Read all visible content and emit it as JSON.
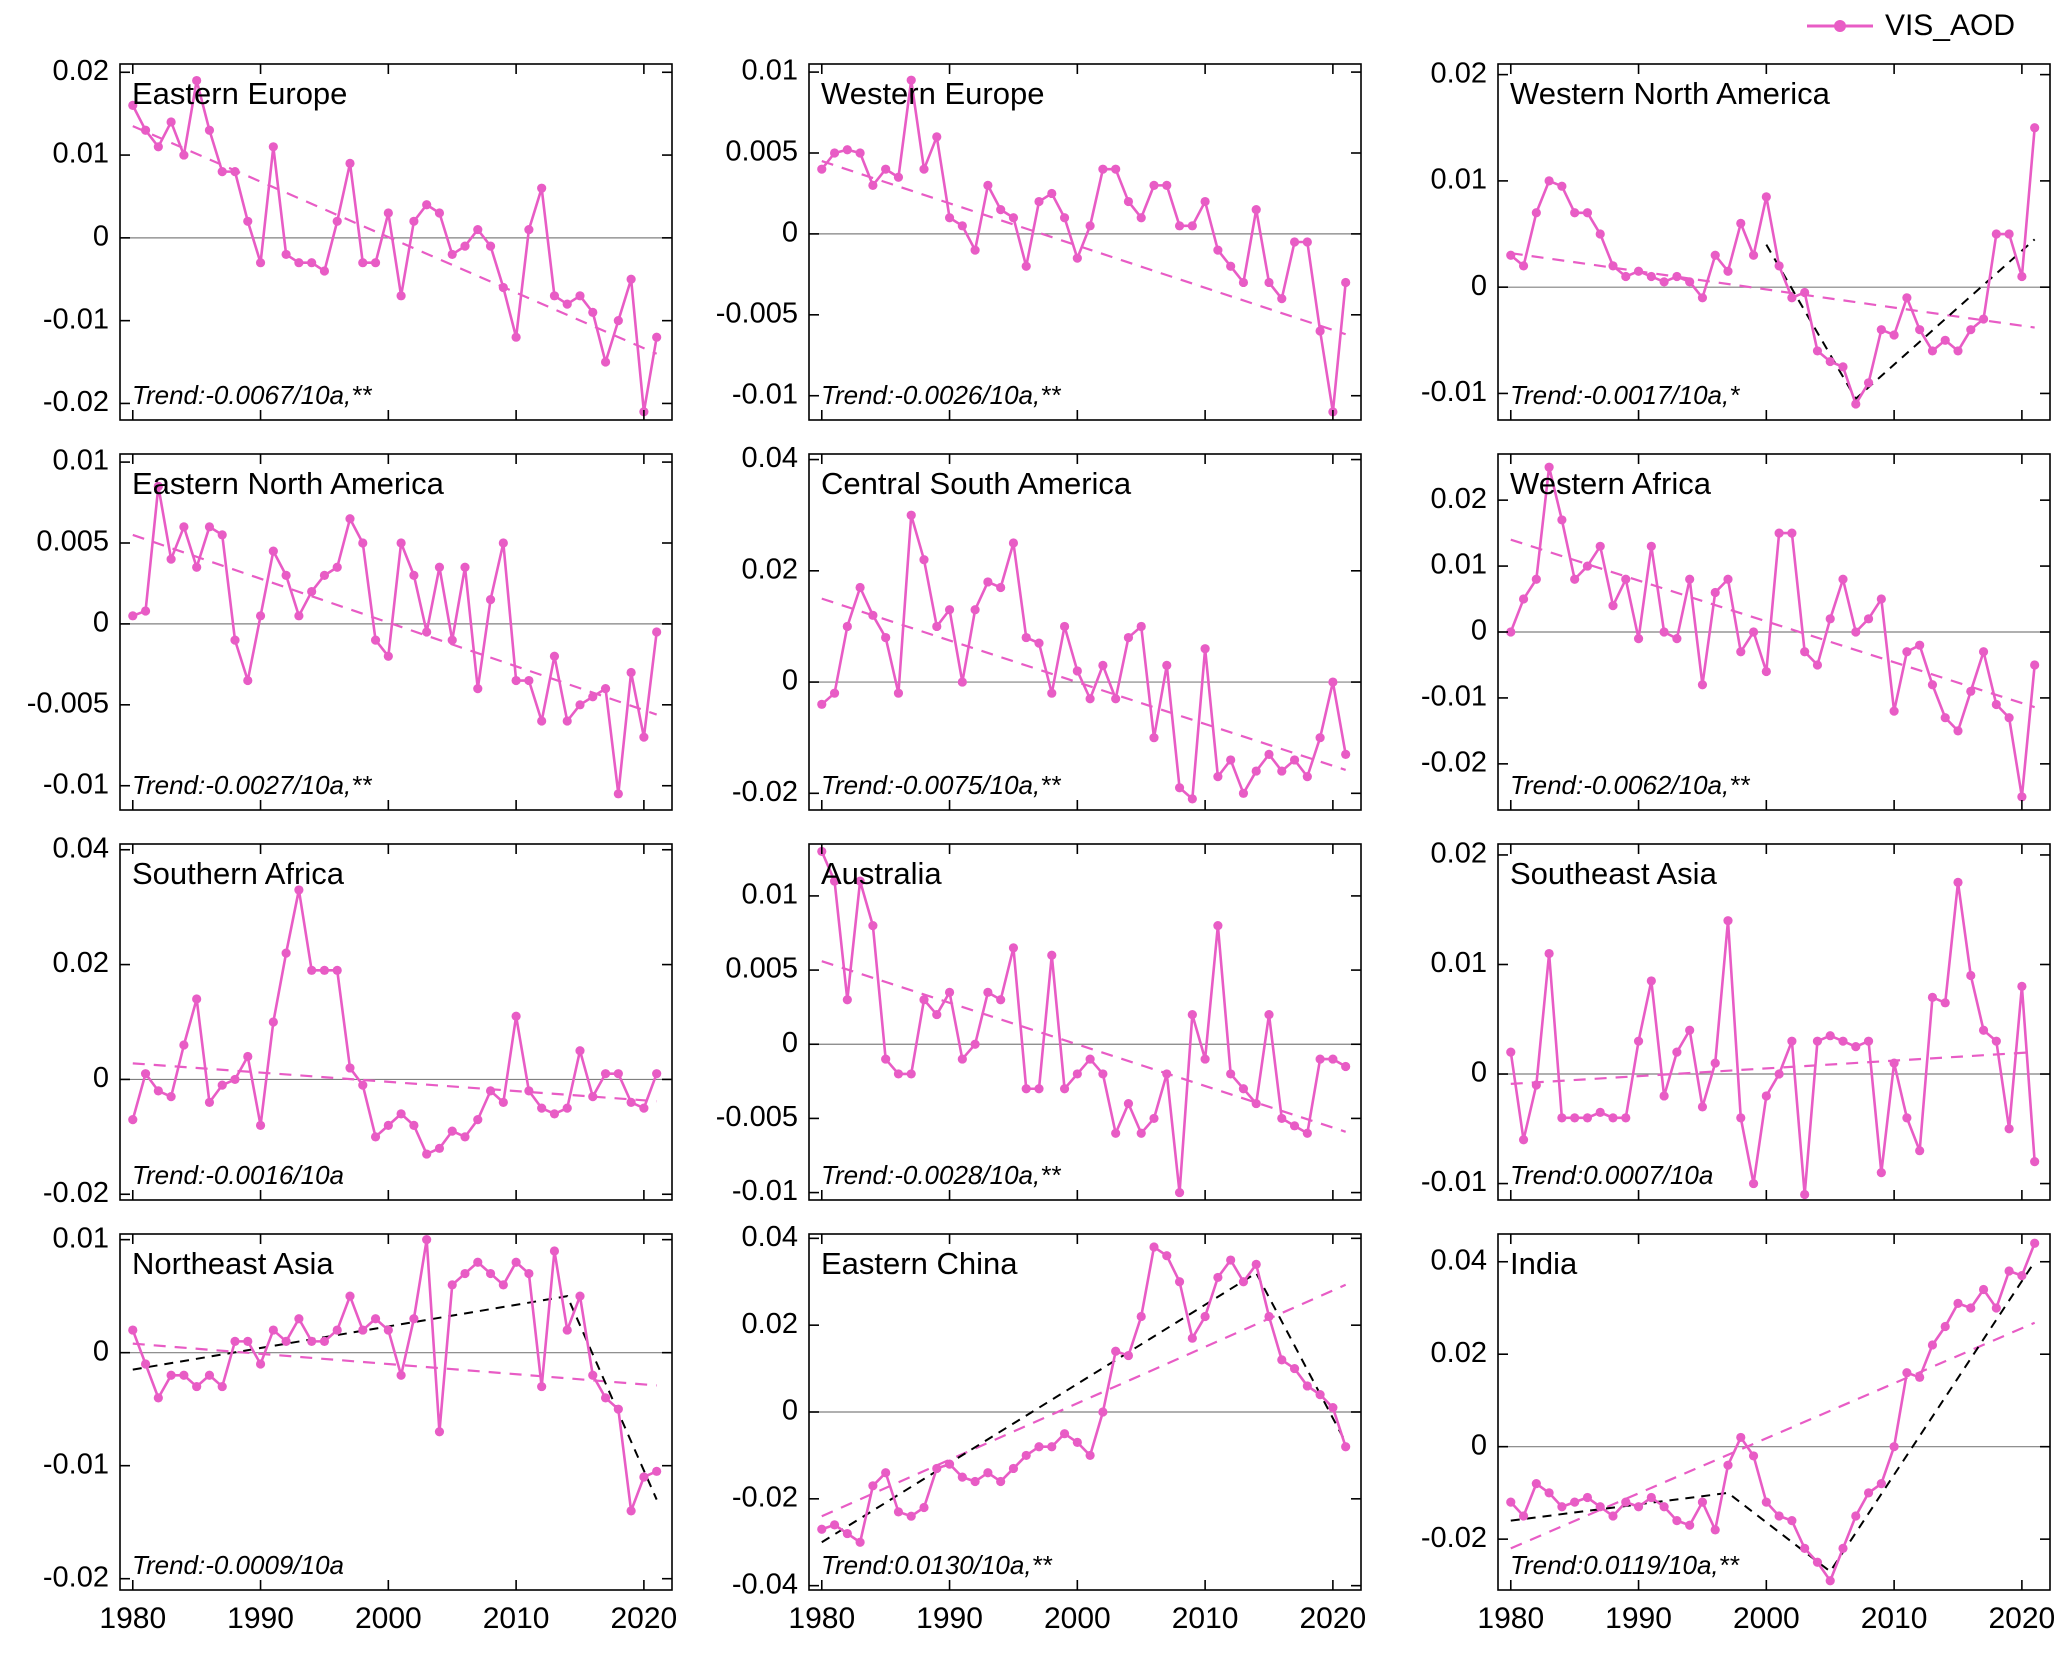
{
  "legend": {
    "label": "VIS_AOD"
  },
  "colors": {
    "series": "#e85cc5",
    "trend": "#e85cc5",
    "piecewise": "#000000",
    "zero_line": "#808080",
    "axis": "#000000"
  },
  "chart_data": {
    "type": "line",
    "grid": "4 rows x 3 cols, shared x axis labels on bottom row only",
    "x_label_ticks": [
      1980,
      1990,
      2000,
      2010,
      2020
    ],
    "xlim": [
      1979,
      2022.2
    ],
    "years": [
      1980,
      1981,
      1982,
      1983,
      1984,
      1985,
      1986,
      1987,
      1988,
      1989,
      1990,
      1991,
      1992,
      1993,
      1994,
      1995,
      1996,
      1997,
      1998,
      1999,
      2000,
      2001,
      2002,
      2003,
      2004,
      2005,
      2006,
      2007,
      2008,
      2009,
      2010,
      2011,
      2012,
      2013,
      2014,
      2015,
      2016,
      2017,
      2018,
      2019,
      2020,
      2021
    ],
    "panels": [
      {
        "title": "Eastern Europe",
        "trend_label": "Trend:-0.0067/10a,**",
        "ylim": [
          -0.022,
          0.021
        ],
        "yticks": [
          0.02,
          0.01,
          0,
          -0.01,
          -0.02
        ],
        "values": [
          0.016,
          0.013,
          0.011,
          0.014,
          0.01,
          0.019,
          0.013,
          0.008,
          0.008,
          0.002,
          -0.003,
          0.011,
          -0.002,
          -0.003,
          -0.003,
          -0.004,
          0.002,
          0.009,
          -0.003,
          -0.003,
          0.003,
          -0.007,
          0.002,
          0.004,
          0.003,
          -0.002,
          -0.001,
          0.001,
          -0.001,
          -0.006,
          -0.012,
          0.001,
          0.006,
          -0.007,
          -0.008,
          -0.007,
          -0.009,
          -0.015,
          -0.01,
          -0.005,
          -0.021,
          -0.012
        ],
        "trend_line": [
          0.0135,
          -0.014
        ],
        "piecewise": null
      },
      {
        "title": "Western Europe",
        "trend_label": "Trend:-0.0026/10a,**",
        "ylim": [
          -0.0115,
          0.0105
        ],
        "yticks": [
          0.01,
          0.005,
          0,
          -0.005,
          -0.01
        ],
        "values": [
          0.004,
          0.005,
          0.0052,
          0.005,
          0.003,
          0.004,
          0.0035,
          0.0095,
          0.004,
          0.006,
          0.001,
          0.0005,
          -0.001,
          0.003,
          0.0015,
          0.001,
          -0.002,
          0.002,
          0.0025,
          0.001,
          -0.0015,
          0.0005,
          0.004,
          0.004,
          0.002,
          0.001,
          0.003,
          0.003,
          0.0005,
          0.0005,
          0.002,
          -0.001,
          -0.002,
          -0.003,
          0.0015,
          -0.003,
          -0.004,
          -0.0005,
          -0.0005,
          -0.006,
          -0.011,
          -0.003
        ],
        "trend_line": [
          0.0045,
          -0.0062
        ],
        "piecewise": null
      },
      {
        "title": "Western North America",
        "trend_label": "Trend:-0.0017/10a,*",
        "ylim": [
          -0.0125,
          0.021
        ],
        "yticks": [
          0.02,
          0.01,
          0,
          -0.01
        ],
        "values": [
          0.003,
          0.002,
          0.007,
          0.01,
          0.0095,
          0.007,
          0.007,
          0.005,
          0.002,
          0.001,
          0.0015,
          0.001,
          0.0005,
          0.001,
          0.0005,
          -0.001,
          0.003,
          0.0015,
          0.006,
          0.003,
          0.0085,
          0.002,
          -0.001,
          -0.0005,
          -0.006,
          -0.007,
          -0.0075,
          -0.011,
          -0.009,
          -0.004,
          -0.0045,
          -0.001,
          -0.004,
          -0.006,
          -0.005,
          -0.006,
          -0.004,
          -0.003,
          0.005,
          0.005,
          0.001,
          0.015
        ],
        "trend_line": [
          0.0032,
          -0.0038
        ],
        "piecewise": [
          [
            2000,
            0.004
          ],
          [
            2007,
            -0.0105
          ],
          [
            2021,
            0.0045
          ]
        ]
      },
      {
        "title": "Eastern North America",
        "trend_label": "Trend:-0.0027/10a,**",
        "ylim": [
          -0.0115,
          0.0105
        ],
        "yticks": [
          0.01,
          0.005,
          0,
          -0.005,
          -0.01
        ],
        "values": [
          0.0005,
          0.0008,
          0.0085,
          0.004,
          0.006,
          0.0035,
          0.006,
          0.0055,
          -0.001,
          -0.0035,
          0.0005,
          0.0045,
          0.003,
          0.0005,
          0.002,
          0.003,
          0.0035,
          0.0065,
          0.005,
          -0.001,
          -0.002,
          0.005,
          0.003,
          -0.0005,
          0.0035,
          -0.001,
          0.0035,
          -0.004,
          0.0015,
          0.005,
          -0.0035,
          -0.0035,
          -0.006,
          -0.002,
          -0.006,
          -0.005,
          -0.0045,
          -0.004,
          -0.0105,
          -0.003,
          -0.007,
          -0.0005
        ],
        "trend_line": [
          0.0055,
          -0.0056
        ],
        "piecewise": null
      },
      {
        "title": "Central South America",
        "trend_label": "Trend:-0.0075/10a,**",
        "ylim": [
          -0.023,
          0.041
        ],
        "yticks": [
          0.04,
          0.02,
          0,
          -0.02
        ],
        "values": [
          -0.004,
          -0.002,
          0.01,
          0.017,
          0.012,
          0.008,
          -0.002,
          0.03,
          0.022,
          0.01,
          0.013,
          0.0,
          0.013,
          0.018,
          0.017,
          0.025,
          0.008,
          0.007,
          -0.002,
          0.01,
          0.002,
          -0.003,
          0.003,
          -0.003,
          0.008,
          0.01,
          -0.01,
          0.003,
          -0.019,
          -0.021,
          0.006,
          -0.017,
          -0.014,
          -0.02,
          -0.016,
          -0.013,
          -0.016,
          -0.014,
          -0.017,
          -0.01,
          0.0,
          -0.013
        ],
        "trend_line": [
          0.015,
          -0.0158
        ],
        "piecewise": null
      },
      {
        "title": "Western Africa",
        "trend_label": "Trend:-0.0062/10a,**",
        "ylim": [
          -0.027,
          0.027
        ],
        "yticks": [
          0.02,
          0.01,
          0,
          -0.01,
          -0.02
        ],
        "values": [
          0.0,
          0.005,
          0.008,
          0.025,
          0.017,
          0.008,
          0.01,
          0.013,
          0.004,
          0.008,
          -0.001,
          0.013,
          0.0,
          -0.001,
          0.008,
          -0.008,
          0.006,
          0.008,
          -0.003,
          0.0,
          -0.006,
          0.015,
          0.015,
          -0.003,
          -0.005,
          0.002,
          0.008,
          0.0,
          0.002,
          0.005,
          -0.012,
          -0.003,
          -0.002,
          -0.008,
          -0.013,
          -0.015,
          -0.009,
          -0.003,
          -0.011,
          -0.013,
          -0.025,
          -0.005
        ],
        "trend_line": [
          0.014,
          -0.0114
        ],
        "piecewise": null
      },
      {
        "title": "Southern Africa",
        "trend_label": "Trend:-0.0016/10a",
        "ylim": [
          -0.021,
          0.041
        ],
        "yticks": [
          0.04,
          0.02,
          0,
          -0.02
        ],
        "values": [
          -0.007,
          0.001,
          -0.002,
          -0.003,
          0.006,
          0.014,
          -0.004,
          -0.001,
          0.0,
          0.004,
          -0.008,
          0.01,
          0.022,
          0.033,
          0.019,
          0.019,
          0.019,
          0.002,
          -0.001,
          -0.01,
          -0.008,
          -0.006,
          -0.008,
          -0.013,
          -0.012,
          -0.009,
          -0.01,
          -0.007,
          -0.002,
          -0.004,
          0.011,
          -0.002,
          -0.005,
          -0.006,
          -0.005,
          0.005,
          -0.003,
          0.001,
          0.001,
          -0.004,
          -0.005,
          0.001
        ],
        "trend_line": [
          0.0028,
          -0.0038
        ],
        "piecewise": null
      },
      {
        "title": "Australia",
        "trend_label": "Trend:-0.0028/10a,**",
        "ylim": [
          -0.0105,
          0.0135
        ],
        "yticks": [
          0.01,
          0.005,
          0,
          -0.005,
          -0.01
        ],
        "values": [
          0.013,
          0.011,
          0.003,
          0.011,
          0.008,
          -0.001,
          -0.002,
          -0.002,
          0.003,
          0.002,
          0.0035,
          -0.001,
          0.0,
          0.0035,
          0.003,
          0.0065,
          -0.003,
          -0.003,
          0.006,
          -0.003,
          -0.002,
          -0.001,
          -0.002,
          -0.006,
          -0.004,
          -0.006,
          -0.005,
          -0.002,
          -0.01,
          0.002,
          -0.001,
          0.008,
          -0.002,
          -0.003,
          -0.004,
          0.002,
          -0.005,
          -0.0055,
          -0.006,
          -0.001,
          -0.001,
          -0.0015
        ],
        "trend_line": [
          0.0056,
          -0.0059
        ],
        "piecewise": null
      },
      {
        "title": "Southeast Asia",
        "trend_label": "Trend:0.0007/10a",
        "ylim": [
          -0.0115,
          0.021
        ],
        "yticks": [
          0.02,
          0.01,
          0,
          -0.01
        ],
        "values": [
          0.002,
          -0.006,
          -0.001,
          0.011,
          -0.004,
          -0.004,
          -0.004,
          -0.0035,
          -0.004,
          -0.004,
          0.003,
          0.0085,
          -0.002,
          0.002,
          0.004,
          -0.003,
          0.001,
          0.014,
          -0.004,
          -0.01,
          -0.002,
          0.0,
          0.003,
          -0.011,
          0.003,
          0.0035,
          0.003,
          0.0025,
          0.003,
          -0.009,
          0.001,
          -0.004,
          -0.007,
          0.007,
          0.0065,
          0.0175,
          0.009,
          0.004,
          0.003,
          -0.005,
          0.008,
          -0.008
        ],
        "trend_line": [
          -0.0009,
          0.002
        ],
        "piecewise": null
      },
      {
        "title": "Northeast Asia",
        "trend_label": "Trend:-0.0009/10a",
        "ylim": [
          -0.021,
          0.0105
        ],
        "yticks": [
          0.01,
          0,
          -0.01,
          -0.02
        ],
        "values": [
          0.002,
          -0.001,
          -0.004,
          -0.002,
          -0.002,
          -0.003,
          -0.002,
          -0.003,
          0.001,
          0.001,
          -0.001,
          0.002,
          0.001,
          0.003,
          0.001,
          0.001,
          0.002,
          0.005,
          0.002,
          0.003,
          0.002,
          -0.002,
          0.003,
          0.01,
          -0.007,
          0.006,
          0.007,
          0.008,
          0.007,
          0.006,
          0.008,
          0.007,
          -0.003,
          0.009,
          0.002,
          0.005,
          -0.002,
          -0.004,
          -0.005,
          -0.014,
          -0.011,
          -0.0105
        ],
        "trend_line": [
          0.0008,
          -0.0029
        ],
        "piecewise": [
          [
            1980,
            -0.0015
          ],
          [
            2014,
            0.005
          ],
          [
            2021,
            -0.013
          ]
        ]
      },
      {
        "title": "Eastern China",
        "trend_label": "Trend:0.0130/10a,**",
        "ylim": [
          -0.041,
          0.041
        ],
        "yticks": [
          0.04,
          0.02,
          0,
          -0.02,
          -0.04
        ],
        "values": [
          -0.027,
          -0.026,
          -0.028,
          -0.03,
          -0.017,
          -0.014,
          -0.023,
          -0.024,
          -0.022,
          -0.013,
          -0.012,
          -0.015,
          -0.016,
          -0.014,
          -0.016,
          -0.013,
          -0.01,
          -0.008,
          -0.008,
          -0.005,
          -0.007,
          -0.01,
          0.0,
          0.014,
          0.013,
          0.022,
          0.038,
          0.036,
          0.03,
          0.017,
          0.022,
          0.031,
          0.035,
          0.03,
          0.034,
          0.022,
          0.012,
          0.01,
          0.006,
          0.004,
          0.001,
          -0.008
        ],
        "trend_line": [
          -0.024,
          0.0293
        ],
        "piecewise": [
          [
            1980,
            -0.03
          ],
          [
            2014,
            0.032
          ],
          [
            2021,
            -0.007
          ]
        ]
      },
      {
        "title": "India",
        "trend_label": "Trend:0.0119/10a,**",
        "ylim": [
          -0.031,
          0.046
        ],
        "yticks": [
          0.04,
          0.02,
          0,
          -0.02
        ],
        "values": [
          -0.012,
          -0.015,
          -0.008,
          -0.01,
          -0.013,
          -0.012,
          -0.011,
          -0.013,
          -0.015,
          -0.012,
          -0.013,
          -0.011,
          -0.013,
          -0.016,
          -0.017,
          -0.012,
          -0.018,
          -0.004,
          0.002,
          -0.002,
          -0.012,
          -0.015,
          -0.016,
          -0.022,
          -0.025,
          -0.029,
          -0.022,
          -0.015,
          -0.01,
          -0.008,
          0.0,
          0.016,
          0.015,
          0.022,
          0.026,
          0.031,
          0.03,
          0.034,
          0.03,
          0.038,
          0.037,
          0.044
        ],
        "trend_line": [
          -0.022,
          0.0268
        ],
        "piecewise": [
          [
            1980,
            -0.016
          ],
          [
            1997,
            -0.01
          ],
          [
            2005,
            -0.027
          ],
          [
            2021,
            0.04
          ]
        ]
      }
    ]
  }
}
